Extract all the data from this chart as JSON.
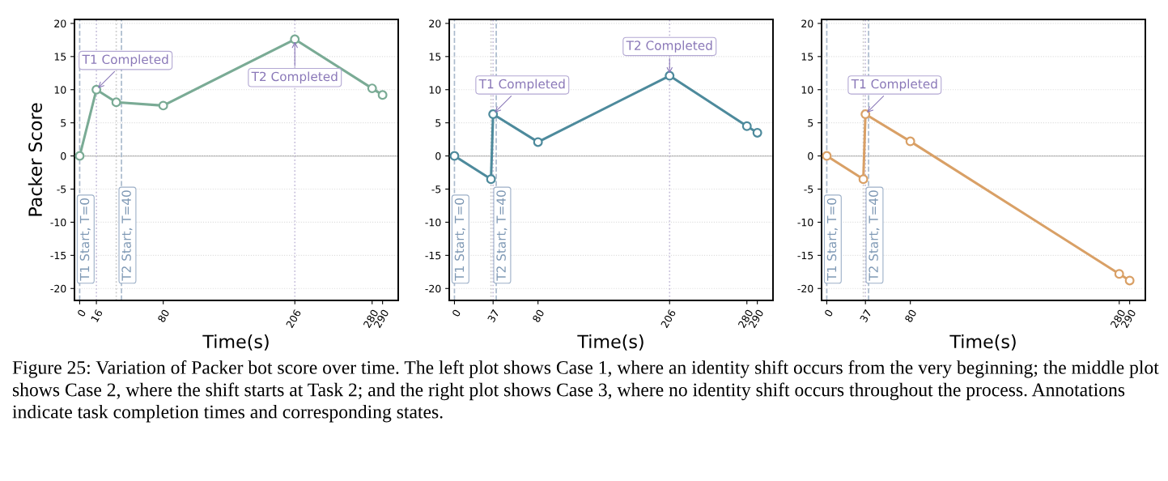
{
  "chart_data": [
    {
      "type": "line",
      "ylabel": "Packer Score",
      "xlabel": "Time(s)",
      "xlim": [
        -5,
        305
      ],
      "ylim": [
        -21.8,
        20.6
      ],
      "xticks": [
        0,
        16,
        80,
        206,
        280,
        290
      ],
      "yticks": [
        -20,
        -15,
        -10,
        -5,
        0,
        5,
        10,
        15,
        20
      ],
      "grid": "y",
      "marker": "circle",
      "line_style": "solid",
      "series": [
        {
          "color": "#7aab95",
          "x": [
            0,
            16,
            35,
            80,
            206,
            280,
            290
          ],
          "values": [
            0,
            10,
            8.1,
            7.6,
            17.6,
            10.2,
            9.2
          ]
        }
      ],
      "ref_lines": [
        {
          "axis": "y",
          "value": 0,
          "color": "#aaaaaa",
          "line_style": "solid"
        },
        {
          "axis": "x",
          "value": 0,
          "label": "T1 Start, T=0",
          "color": "#a9b9cc",
          "line_style": "dashed"
        },
        {
          "axis": "x",
          "value": 40,
          "label": "T2 Start, T=40",
          "color": "#a9b9cc",
          "line_style": "dashed"
        },
        {
          "axis": "x",
          "value": 16,
          "color": "#c4bcd9",
          "line_style": "dotted"
        },
        {
          "axis": "x",
          "value": 35,
          "color": "#c8c8c8",
          "line_style": "dotted"
        },
        {
          "axis": "x",
          "value": 206,
          "color": "#c4bcd9",
          "line_style": "dotted"
        }
      ],
      "annotations": [
        {
          "text": "T1 Completed",
          "x": 16,
          "y": 10
        },
        {
          "text": "T2 Completed",
          "x": 206,
          "y": 17.6
        },
        "Figure 25: Variation of Packer bot score over time. The left plot shows Case 1, where an identity shift occurs from the very beginning; the middle plot shows Case 2, where the shift starts at Task 2; and the right plot shows Case 3, where no identity shift occurs throughout the process. Annotations indicate task completion times and corresponding states."
      ]
    },
    {
      "type": "line",
      "xlabel": "Time(s)",
      "xlim": [
        -5,
        305
      ],
      "ylim": [
        -21.8,
        20.6
      ],
      "xticks": [
        0,
        37,
        80,
        206,
        280,
        290
      ],
      "yticks": [
        -20,
        -15,
        -10,
        -5,
        0,
        5,
        10,
        15,
        20
      ],
      "grid": "y",
      "marker": "circle",
      "line_style": "solid",
      "series": [
        {
          "color": "#4d8a9c",
          "x": [
            0,
            35,
            37,
            80,
            206,
            280,
            290
          ],
          "values": [
            0,
            -3.5,
            6.3,
            2.1,
            12.1,
            4.5,
            3.5
          ]
        }
      ],
      "ref_lines": [
        {
          "axis": "y",
          "value": 0,
          "color": "#aaaaaa",
          "line_style": "solid"
        },
        {
          "axis": "x",
          "value": 0,
          "label": "T1 Start, T=0",
          "color": "#a9b9cc",
          "line_style": "dashed"
        },
        {
          "axis": "x",
          "value": 40,
          "label": "T2 Start, T=40",
          "color": "#a9b9cc",
          "line_style": "dashed"
        },
        {
          "axis": "x",
          "value": 35,
          "color": "#c8c8c8",
          "line_style": "dotted"
        },
        {
          "axis": "x",
          "value": 37,
          "color": "#c4bcd9",
          "line_style": "dotted"
        },
        {
          "axis": "x",
          "value": 206,
          "color": "#c4bcd9",
          "line_style": "dotted"
        }
      ],
      "annotations": [
        {
          "text": "T1 Completed",
          "x": 37,
          "y": 6.3
        },
        {
          "text": "T2 Completed",
          "x": 206,
          "y": 12.1
        }
      ]
    },
    {
      "type": "line",
      "xlabel": "Time(s)",
      "xlim": [
        -5,
        305
      ],
      "ylim": [
        -21.8,
        20.6
      ],
      "xticks": [
        0,
        37,
        80,
        280,
        290
      ],
      "yticks": [
        -20,
        -15,
        -10,
        -5,
        0,
        5,
        10,
        15,
        20
      ],
      "grid": "y",
      "marker": "circle",
      "line_style": "solid",
      "series": [
        {
          "color": "#d9a066",
          "x": [
            0,
            35,
            37,
            80,
            280,
            290
          ],
          "values": [
            0,
            -3.5,
            6.3,
            2.2,
            -17.8,
            -18.8
          ]
        }
      ],
      "ref_lines": [
        {
          "axis": "y",
          "value": 0,
          "color": "#aaaaaa",
          "line_style": "solid"
        },
        {
          "axis": "x",
          "value": 0,
          "label": "T1 Start, T=0",
          "color": "#a9b9cc",
          "line_style": "dashed"
        },
        {
          "axis": "x",
          "value": 40,
          "label": "T2 Start, T=40",
          "color": "#a9b9cc",
          "line_style": "dashed"
        },
        {
          "axis": "x",
          "value": 35,
          "color": "#c8c8c8",
          "line_style": "dotted"
        },
        {
          "axis": "x",
          "value": 37,
          "color": "#c4bcd9",
          "line_style": "dotted"
        }
      ],
      "annotations": [
        {
          "text": "T1 Completed",
          "x": 37,
          "y": 6.3
        }
      ]
    }
  ]
}
